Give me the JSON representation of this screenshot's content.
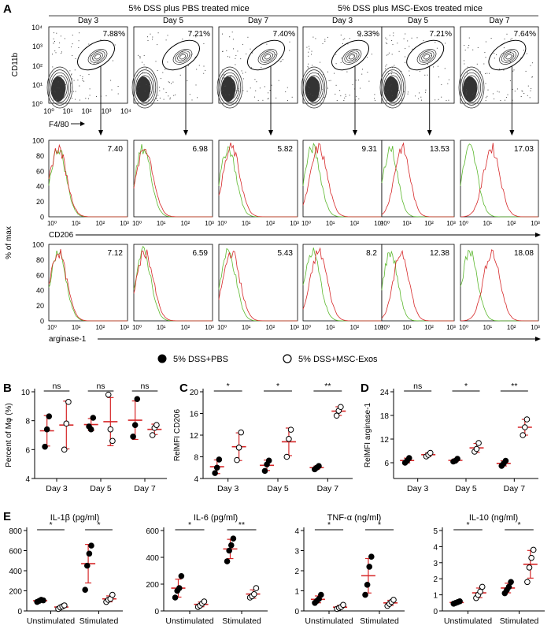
{
  "panel_letters": {
    "A": "A",
    "B": "B",
    "C": "C",
    "D": "D",
    "E": "E"
  },
  "colors": {
    "pbs_fill": "#000000",
    "exos_fill": "#ffffff",
    "mean_bar": "#d62728",
    "hist_green": "#5cb82e",
    "hist_red": "#d62728"
  },
  "panel_a": {
    "group_titles": [
      "5% DSS plus PBS treated mice",
      "5% DSS plus MSC-Exos treated mice"
    ],
    "day_labels": [
      "Day 3",
      "Day 5",
      "Day 7",
      "Day 3",
      "Day 5",
      "Day 7"
    ],
    "flow": {
      "y_axis_label": "CD11b",
      "x_axis_label": "F4/80",
      "ticks": [
        "10⁰",
        "10¹",
        "10²",
        "10³",
        "10⁴"
      ],
      "percents": [
        "7.88%",
        "7.21%",
        "7.40%",
        "9.33%",
        "7.21%",
        "7.64%"
      ]
    },
    "hist_y_label": "% of max",
    "hist_y_ticks": [
      "0",
      "20",
      "40",
      "60",
      "80",
      "100"
    ],
    "hist_x_ticks": [
      "10⁰",
      "10¹",
      "10²",
      "10³"
    ],
    "cd206": {
      "x_label": "CD206",
      "values": [
        "7.40",
        "6.98",
        "5.82",
        "9.31",
        "13.53",
        "17.03"
      ],
      "peaks": [
        12,
        14,
        16,
        20,
        28,
        40
      ]
    },
    "arginase": {
      "x_label": "arginase-1",
      "values": [
        "7.12",
        "6.59",
        "5.43",
        "8.2",
        "12.38",
        "18.08"
      ],
      "peaks": [
        12,
        14,
        16,
        20,
        27,
        40
      ]
    }
  },
  "legend": {
    "pbs": "5% DSS+PBS",
    "exos": "5% DSS+MSC-Exos"
  },
  "chart_data": [
    {
      "type": "scatter",
      "panel": "B",
      "ylabel": "Percent of Mφ (%)",
      "ylim": [
        4,
        10
      ],
      "yticks": [
        "4",
        "6",
        "8",
        "10"
      ],
      "categories": [
        "Day 3",
        "Day 5",
        "Day 7"
      ],
      "series": [
        {
          "name": "5% DSS+PBS",
          "values": [
            [
              6.2,
              7.4,
              8.3
            ],
            [
              7.6,
              7.4,
              8.2
            ],
            [
              6.9,
              7.7,
              9.5
            ]
          ]
        },
        {
          "name": "5% DSS+MSC-Exos",
          "values": [
            [
              6.0,
              7.8,
              9.3
            ],
            [
              9.8,
              7.4,
              6.6
            ],
            [
              7.0,
              7.5,
              7.7
            ]
          ]
        }
      ],
      "sig": [
        "ns",
        "ns",
        "ns"
      ]
    },
    {
      "type": "scatter",
      "panel": "C",
      "ylabel": "RelMFI CD206",
      "ylim": [
        4,
        20
      ],
      "yticks": [
        "4",
        "8",
        "12",
        "16",
        "20"
      ],
      "categories": [
        "Day 3",
        "Day 5",
        "Day 7"
      ],
      "series": [
        {
          "name": "5% DSS+PBS",
          "values": [
            [
              5.0,
              6.0,
              7.5
            ],
            [
              5.4,
              6.6,
              7.3
            ],
            [
              5.7,
              6.0,
              6.3
            ]
          ]
        },
        {
          "name": "5% DSS+MSC-Exos",
          "values": [
            [
              7.4,
              9.7,
              12.5
            ],
            [
              8.0,
              11.3,
              13.0
            ],
            [
              15.6,
              16.5,
              17.2
            ]
          ]
        }
      ],
      "sig": [
        "*",
        "*",
        "**"
      ]
    },
    {
      "type": "scatter",
      "panel": "D",
      "ylabel": "RelMFI arginase-1",
      "ylim": [
        2,
        24
      ],
      "yticks": [
        "6",
        "12",
        "18",
        "24"
      ],
      "categories": [
        "Day 3",
        "Day 5",
        "Day 7"
      ],
      "series": [
        {
          "name": "5% DSS+PBS",
          "values": [
            [
              6.0,
              6.5,
              7.2
            ],
            [
              6.3,
              6.5,
              7.0
            ],
            [
              5.2,
              5.8,
              6.5
            ]
          ]
        },
        {
          "name": "5% DSS+MSC-Exos",
          "values": [
            [
              7.6,
              8.0,
              8.5
            ],
            [
              8.8,
              9.5,
              11.0
            ],
            [
              13.0,
              15.0,
              17.0
            ]
          ]
        }
      ],
      "sig": [
        "ns",
        "*",
        "**"
      ]
    },
    {
      "type": "scatter",
      "panel": "E",
      "title": "IL-1β (pg/ml)",
      "ylim": [
        0,
        800
      ],
      "yticks": [
        "0",
        "200",
        "400",
        "600",
        "800"
      ],
      "categories": [
        "Unstimulated",
        "Stimulated"
      ],
      "series": [
        {
          "name": "5% DSS+PBS",
          "values": [
            [
              90,
              100,
              110,
              105
            ],
            [
              210,
              450,
              570,
              650
            ]
          ]
        },
        {
          "name": "5% DSS+MSC-Exos",
          "values": [
            [
              20,
              35,
              45,
              55
            ],
            [
              90,
              110,
              120,
              160
            ]
          ]
        }
      ],
      "sig": [
        "*",
        "*"
      ]
    },
    {
      "type": "scatter",
      "panel": "E",
      "title": "IL-6 (pg/ml)",
      "ylim": [
        0,
        600
      ],
      "yticks": [
        "0",
        "200",
        "400",
        "600"
      ],
      "categories": [
        "Unstimulated",
        "Stimulated"
      ],
      "series": [
        {
          "name": "5% DSS+PBS",
          "values": [
            [
              100,
              150,
              170,
              260
            ],
            [
              370,
              450,
              490,
              540
            ]
          ]
        },
        {
          "name": "5% DSS+MSC-Exos",
          "values": [
            [
              30,
              40,
              55,
              70
            ],
            [
              100,
              110,
              125,
              170
            ]
          ]
        }
      ],
      "sig": [
        "*",
        "**"
      ]
    },
    {
      "type": "scatter",
      "panel": "E",
      "title": "TNF-α (ng/ml)",
      "ylim": [
        0,
        4
      ],
      "yticks": [
        "0",
        "1",
        "2",
        "3",
        "4"
      ],
      "categories": [
        "Unstimulated",
        "Stimulated"
      ],
      "series": [
        {
          "name": "5% DSS+PBS",
          "values": [
            [
              0.4,
              0.5,
              0.6,
              0.8
            ],
            [
              0.8,
              1.3,
              2.2,
              2.7
            ]
          ]
        },
        {
          "name": "5% DSS+MSC-Exos",
          "values": [
            [
              0.1,
              0.15,
              0.2,
              0.3
            ],
            [
              0.25,
              0.35,
              0.45,
              0.55
            ]
          ]
        }
      ],
      "sig": [
        "*",
        "*"
      ]
    },
    {
      "type": "scatter",
      "panel": "E",
      "title": "IL-10 (ng/ml)",
      "ylim": [
        0,
        5
      ],
      "yticks": [
        "0",
        "1",
        "2",
        "3",
        "4",
        "5"
      ],
      "categories": [
        "Unstimulated",
        "Stimulated"
      ],
      "series": [
        {
          "name": "5% DSS+PBS",
          "values": [
            [
              0.45,
              0.5,
              0.55,
              0.6
            ],
            [
              1.1,
              1.3,
              1.5,
              1.8
            ]
          ]
        },
        {
          "name": "5% DSS+MSC-Exos",
          "values": [
            [
              0.8,
              1.0,
              1.2,
              1.5
            ],
            [
              1.8,
              2.7,
              3.3,
              3.8
            ]
          ]
        }
      ],
      "sig": [
        "*",
        "*"
      ]
    }
  ]
}
